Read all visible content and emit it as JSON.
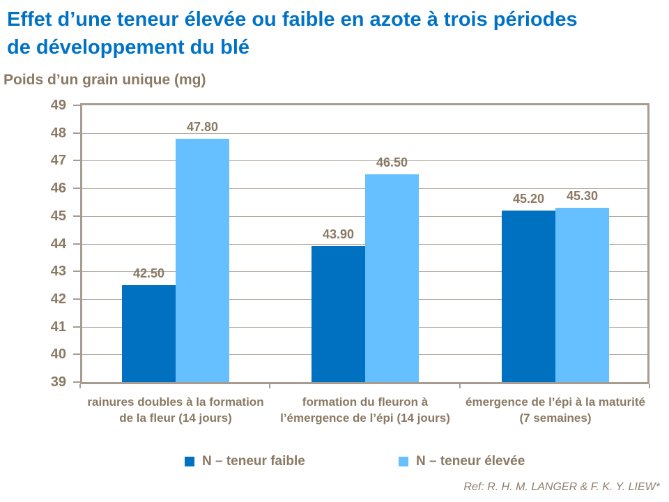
{
  "title": {
    "line1": "Effet d’une teneur élevée ou faible en azote à trois périodes",
    "line2": "de développement du blé"
  },
  "axis_title": "Poids d’un grain unique (mg)",
  "reference": "Ref: R. H. M. LANGER & F. K. Y. LIEW*",
  "colors": {
    "title_blue": "#0072C6",
    "bar_dark_blue": "#0070C0",
    "bar_light_blue": "#66BFFF",
    "text_brown": "#8A7963",
    "gridline": "#B4ABA2",
    "frame": "#A69C92"
  },
  "chart_data": {
    "type": "bar",
    "title": "Effet d’une teneur élevée ou faible en azote à trois périodes de développement du blé",
    "xlabel": "",
    "ylabel": "Poids d’un grain unique (mg)",
    "ylim": [
      39,
      49
    ],
    "ytick_step": 1,
    "grid": true,
    "legend_position": "bottom",
    "categories": [
      "rainures doubles à la formation de la fleur (14 jours)",
      "formation du fleuron à l’émergence de l’épi (14 jours)",
      "émergence de l’épi à la maturité (7 semaines)"
    ],
    "series": [
      {
        "name": "N – teneur faible",
        "color": "#0070C0",
        "values": [
          42.5,
          43.9,
          45.2
        ],
        "labels": [
          "42.50",
          "43.90",
          "45.20"
        ]
      },
      {
        "name": "N – teneur élevée",
        "color": "#66BFFF",
        "values": [
          47.8,
          46.5,
          45.3
        ],
        "labels": [
          "47.80",
          "46.50",
          "45.30"
        ]
      }
    ]
  },
  "legend": {
    "items": [
      {
        "label": "N – teneur faible",
        "color": "#0070C0"
      },
      {
        "label": "N – teneur élevée",
        "color": "#66BFFF"
      }
    ]
  }
}
